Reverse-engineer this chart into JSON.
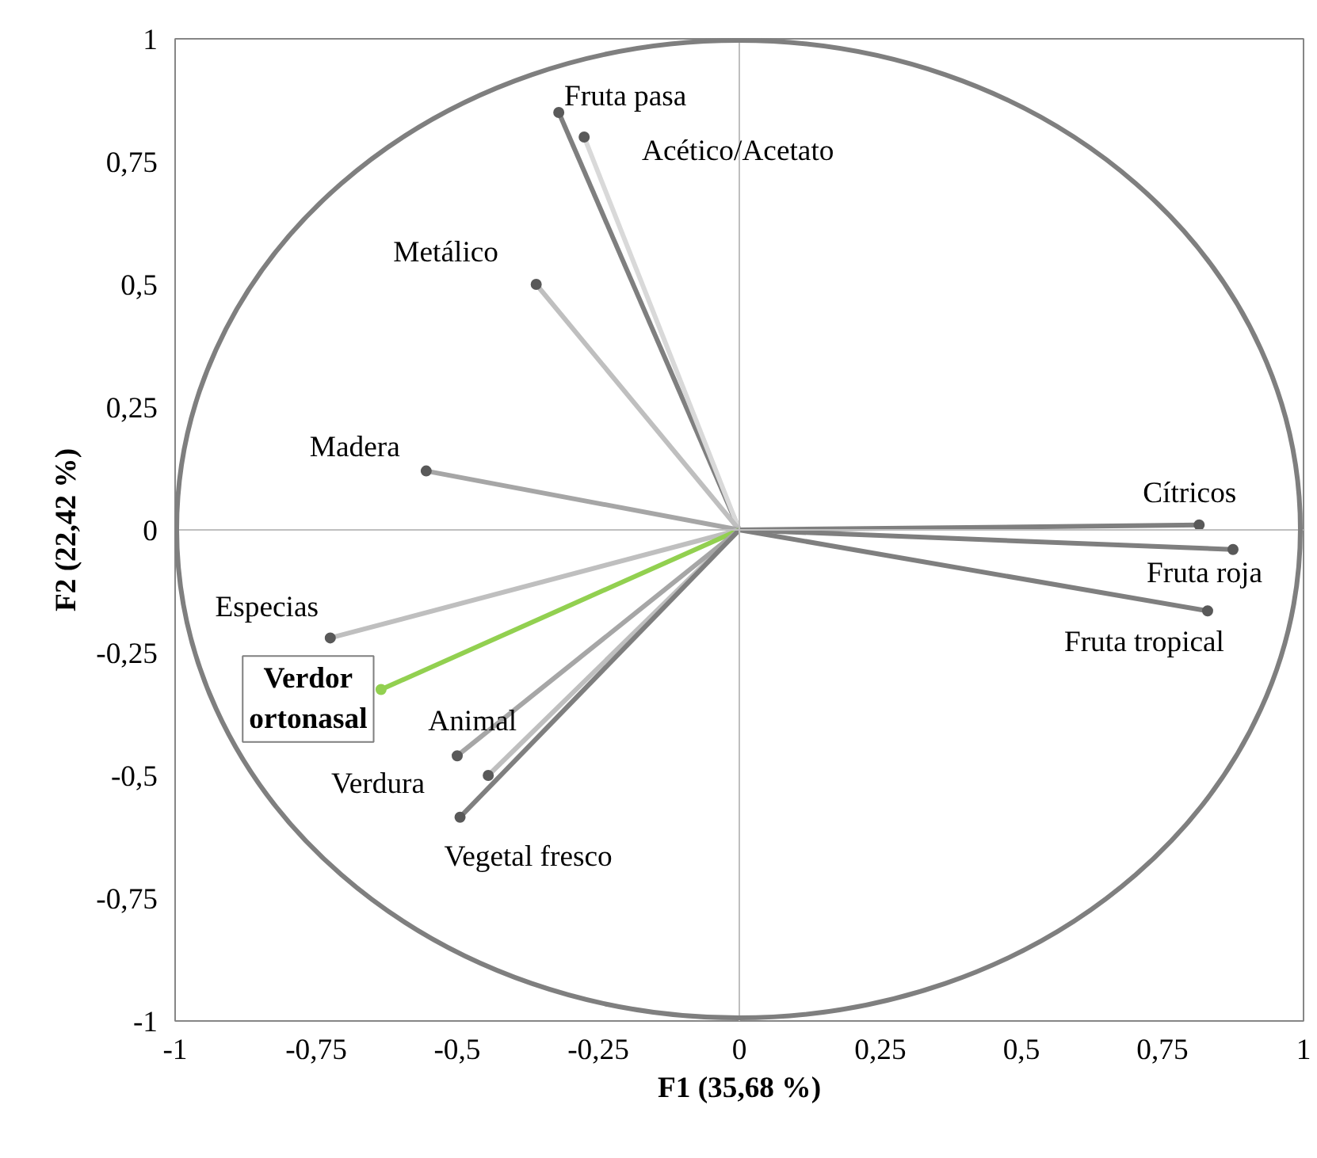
{
  "chart_data": {
    "type": "line",
    "xlabel": "F1 (35,68 %)",
    "ylabel": "F2 (22,42 %)",
    "marker": "circle",
    "xlim": [
      -1,
      1
    ],
    "ylim": [
      -1,
      1
    ],
    "xticks": [
      {
        "value": -1,
        "label": "-1"
      },
      {
        "value": -0.75,
        "label": "-0,75"
      },
      {
        "value": -0.5,
        "label": "-0,5"
      },
      {
        "value": -0.25,
        "label": "-0,25"
      },
      {
        "value": 0,
        "label": "0"
      },
      {
        "value": 0.25,
        "label": "0,25"
      },
      {
        "value": 0.5,
        "label": "0,5"
      },
      {
        "value": 0.75,
        "label": "0,75"
      },
      {
        "value": 1,
        "label": "1"
      }
    ],
    "yticks": [
      {
        "value": -1,
        "label": "-1"
      },
      {
        "value": -0.75,
        "label": "-0,75"
      },
      {
        "value": -0.5,
        "label": "-0,5"
      },
      {
        "value": -0.25,
        "label": "-0,25"
      },
      {
        "value": 0,
        "label": "0"
      },
      {
        "value": 0.25,
        "label": "0,25"
      },
      {
        "value": 0.5,
        "label": "0,5"
      },
      {
        "value": 0.75,
        "label": "0,75"
      },
      {
        "value": 1,
        "label": "1"
      }
    ],
    "series": [
      {
        "name": "Fruta pasa",
        "color": "#7f7f7f",
        "x": [
          0,
          -0.32
        ],
        "values": [
          0,
          0.85
        ]
      },
      {
        "name": "Acético/Acetato",
        "color": "#d9d9d9",
        "x": [
          0,
          -0.275
        ],
        "values": [
          0,
          0.8
        ]
      },
      {
        "name": "Metálico",
        "color": "#bfbfbf",
        "x": [
          0,
          -0.36
        ],
        "values": [
          0,
          0.5
        ]
      },
      {
        "name": "Madera",
        "color": "#a6a6a6",
        "x": [
          0,
          -0.555
        ],
        "values": [
          0,
          0.12
        ]
      },
      {
        "name": "Cítricos",
        "color": "#7f7f7f",
        "x": [
          0,
          0.815
        ],
        "values": [
          0,
          0.01
        ]
      },
      {
        "name": "Fruta roja",
        "color": "#7f7f7f",
        "x": [
          0,
          0.875
        ],
        "values": [
          0,
          -0.04
        ]
      },
      {
        "name": "Fruta tropical",
        "color": "#7f7f7f",
        "x": [
          0,
          0.83
        ],
        "values": [
          0,
          -0.165
        ]
      },
      {
        "name": "Especias",
        "color": "#bfbfbf",
        "x": [
          0,
          -0.725
        ],
        "values": [
          0,
          -0.22
        ]
      },
      {
        "name": "Verdor ortonasal",
        "color": "#92d050",
        "x": [
          0,
          -0.635
        ],
        "values": [
          0,
          -0.325
        ]
      },
      {
        "name": "Animal",
        "color": "#bfbfbf",
        "x": [
          0,
          -0.445
        ],
        "values": [
          0,
          -0.5
        ]
      },
      {
        "name": "Verdura",
        "color": "#a6a6a6",
        "x": [
          0,
          -0.5
        ],
        "values": [
          0,
          -0.46
        ]
      },
      {
        "name": "Vegetal fresco",
        "color": "#7f7f7f",
        "x": [
          0,
          -0.495
        ],
        "values": [
          0,
          -0.585
        ]
      }
    ]
  }
}
